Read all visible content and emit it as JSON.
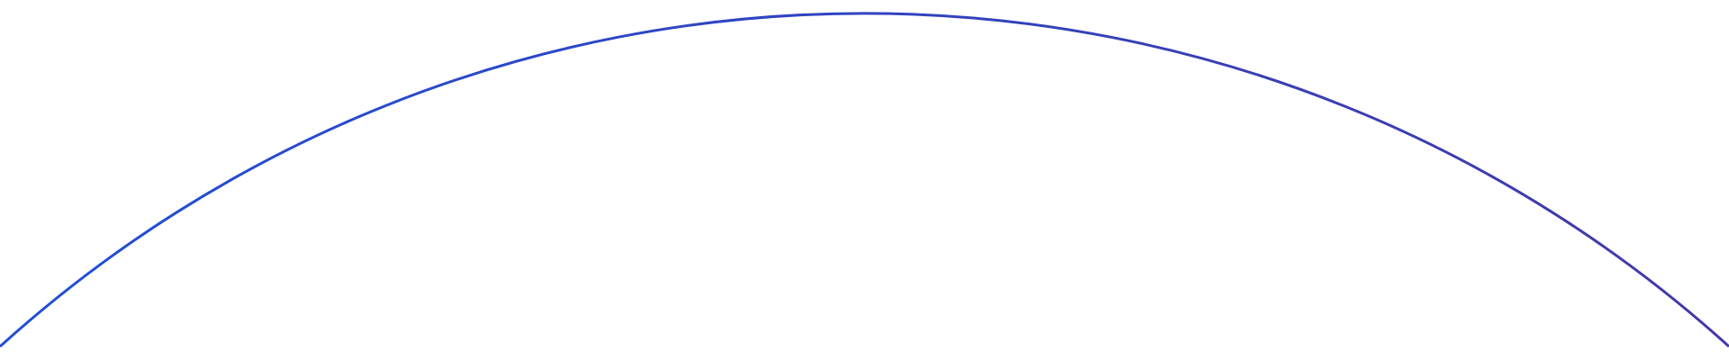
{
  "arc": {
    "color_start": "#1f4fd6",
    "color_end": "#4338a8"
  }
}
